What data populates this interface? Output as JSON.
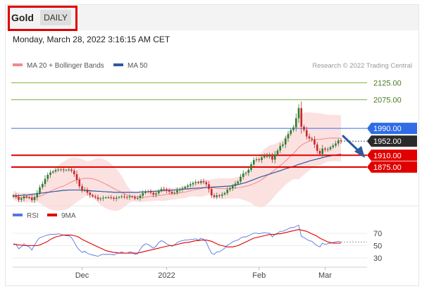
{
  "symbol": "Gold",
  "timeframe": "DAILY",
  "date": "Monday, March 28, 2022 3:16:15 AM CET",
  "research": "Research © 2022 Trading Central",
  "legend_top": [
    {
      "label": "MA 20 + Bollinger Bands",
      "color": "#f08a8a"
    },
    {
      "label": "MA 50",
      "color": "#2d5aa0"
    }
  ],
  "legend_bottom": [
    {
      "label": "RSI",
      "color": "#5577dd"
    },
    {
      "label": "9MA",
      "color": "#e00000"
    }
  ],
  "colors": {
    "up": "#2e7d32",
    "down": "#c62828",
    "target": "#7cb342",
    "resistance": "#3b6fe0",
    "support": "#e00000",
    "current": "#222222",
    "arrow": "#2d5aa0"
  },
  "chart_data": [
    {
      "type": "candlestick",
      "title": "",
      "ylim": [
        1760,
        2145
      ],
      "x_tick_labels": [
        "Dec",
        "2022",
        "Feb",
        "Mar"
      ],
      "levels": [
        {
          "label": "2125.00",
          "value": 2125,
          "role": "target"
        },
        {
          "label": "2075.00",
          "value": 2075,
          "role": "target"
        },
        {
          "label": "1990.00",
          "value": 1990,
          "role": "resistance"
        },
        {
          "label": "1952.00",
          "value": 1952,
          "role": "current"
        },
        {
          "label": "1910.00",
          "value": 1910,
          "role": "support"
        },
        {
          "label": "1875.00",
          "value": 1875,
          "role": "support"
        }
      ],
      "closes": [
        1791,
        1786,
        1778,
        1782,
        1788,
        1785,
        1784,
        1777,
        1786,
        1798,
        1815,
        1825,
        1840,
        1852,
        1859,
        1862,
        1866,
        1868,
        1868,
        1866,
        1866,
        1868,
        1864,
        1854,
        1837,
        1818,
        1806,
        1808,
        1799,
        1792,
        1788,
        1785,
        1780,
        1782,
        1784,
        1785,
        1785,
        1784,
        1781,
        1784,
        1786,
        1788,
        1786,
        1785,
        1788,
        1786,
        1782,
        1783,
        1790,
        1798,
        1803,
        1802,
        1799,
        1793,
        1797,
        1805,
        1810,
        1809,
        1805,
        1802,
        1797,
        1799,
        1806,
        1809,
        1812,
        1816,
        1820,
        1824,
        1828,
        1831,
        1828,
        1833,
        1830,
        1824,
        1810,
        1791,
        1786,
        1791,
        1790,
        1794,
        1798,
        1808,
        1812,
        1819,
        1826,
        1832,
        1846,
        1856,
        1858,
        1867,
        1883,
        1896,
        1898,
        1896,
        1904,
        1911,
        1906,
        1910,
        1897,
        1913,
        1924,
        1938,
        1942,
        1960,
        1973,
        1985,
        1993,
        2020,
        2050,
        1995,
        1985,
        1966,
        1960,
        1957,
        1942,
        1923,
        1914,
        1930,
        1927,
        1928,
        1934,
        1939,
        1945,
        1954,
        1952
      ],
      "ma50": [
        1790,
        1790,
        1790,
        1791,
        1792,
        1792,
        1793,
        1794,
        1795,
        1796,
        1797,
        1798,
        1799,
        1800,
        1801,
        1802,
        1803,
        1804,
        1805,
        1806,
        1806,
        1807,
        1807,
        1807,
        1807,
        1807,
        1806,
        1806,
        1805,
        1805,
        1804,
        1804,
        1803,
        1803,
        1802,
        1802,
        1801,
        1801,
        1800,
        1800,
        1800,
        1800,
        1800,
        1800,
        1800,
        1800,
        1800,
        1800,
        1801,
        1801,
        1802,
        1802,
        1803,
        1803,
        1804,
        1804,
        1805,
        1805,
        1806,
        1806,
        1807,
        1807,
        1808,
        1808,
        1809,
        1810,
        1810,
        1811,
        1812,
        1812,
        1813,
        1813,
        1814,
        1814,
        1815,
        1815,
        1816,
        1816,
        1817,
        1817,
        1818,
        1818,
        1819,
        1820,
        1822,
        1823,
        1825,
        1827,
        1829,
        1832,
        1835,
        1838,
        1841,
        1844,
        1847,
        1849,
        1852,
        1854,
        1857,
        1859,
        1862,
        1864,
        1867,
        1870,
        1872,
        1875,
        1877,
        1880,
        1883,
        1885,
        1888,
        1890,
        1893,
        1895,
        1897,
        1899,
        1901,
        1903,
        1905,
        1907,
        1908,
        1910,
        1911,
        1912,
        1913
      ]
    },
    {
      "type": "line",
      "ylabel": "",
      "ylim": [
        20,
        80
      ],
      "y_ticks": [
        70,
        50,
        30
      ],
      "series": [
        {
          "name": "RSI",
          "values": [
            53,
            52,
            45,
            48,
            53,
            50,
            48,
            43,
            51,
            58,
            63,
            64,
            66,
            67,
            68,
            68,
            68,
            69,
            68,
            67,
            66,
            66,
            63,
            56,
            48,
            43,
            39,
            41,
            38,
            36,
            35,
            34,
            33,
            35,
            36,
            36,
            36,
            36,
            35,
            37,
            38,
            40,
            38,
            38,
            40,
            39,
            36,
            37,
            44,
            50,
            53,
            52,
            49,
            46,
            49,
            55,
            58,
            56,
            53,
            51,
            49,
            51,
            55,
            57,
            58,
            59,
            59,
            60,
            60,
            61,
            59,
            62,
            60,
            56,
            46,
            38,
            36,
            40,
            40,
            43,
            46,
            51,
            53,
            56,
            58,
            59,
            62,
            64,
            64,
            66,
            68,
            70,
            70,
            69,
            70,
            71,
            70,
            70,
            64,
            68,
            70,
            73,
            73,
            75,
            77,
            79,
            79,
            81,
            83,
            65,
            63,
            60,
            58,
            57,
            53,
            50,
            48,
            54,
            52,
            53,
            54,
            55,
            56,
            57,
            56
          ]
        },
        {
          "name": "9MA",
          "values": [
            52,
            52,
            51,
            51,
            50,
            50,
            50,
            50,
            50,
            50,
            51,
            53,
            55,
            57,
            60,
            62,
            64,
            65,
            66,
            67,
            67,
            67,
            67,
            66,
            65,
            63,
            60,
            58,
            56,
            54,
            52,
            50,
            48,
            46,
            44,
            42,
            41,
            40,
            39,
            39,
            38,
            38,
            38,
            38,
            38,
            38,
            38,
            38,
            39,
            40,
            41,
            42,
            43,
            44,
            45,
            46,
            47,
            48,
            49,
            50,
            50,
            51,
            52,
            53,
            54,
            55,
            55,
            56,
            57,
            58,
            58,
            59,
            59,
            59,
            58,
            57,
            55,
            53,
            51,
            50,
            49,
            48,
            48,
            48,
            49,
            50,
            52,
            54,
            56,
            58,
            60,
            62,
            63,
            64,
            65,
            66,
            67,
            68,
            68,
            68,
            69,
            69,
            70,
            71,
            72,
            73,
            74,
            75,
            76,
            75,
            74,
            73,
            71,
            69,
            67,
            65,
            62,
            60,
            58,
            56,
            55,
            54,
            54,
            54,
            54
          ]
        }
      ]
    }
  ]
}
